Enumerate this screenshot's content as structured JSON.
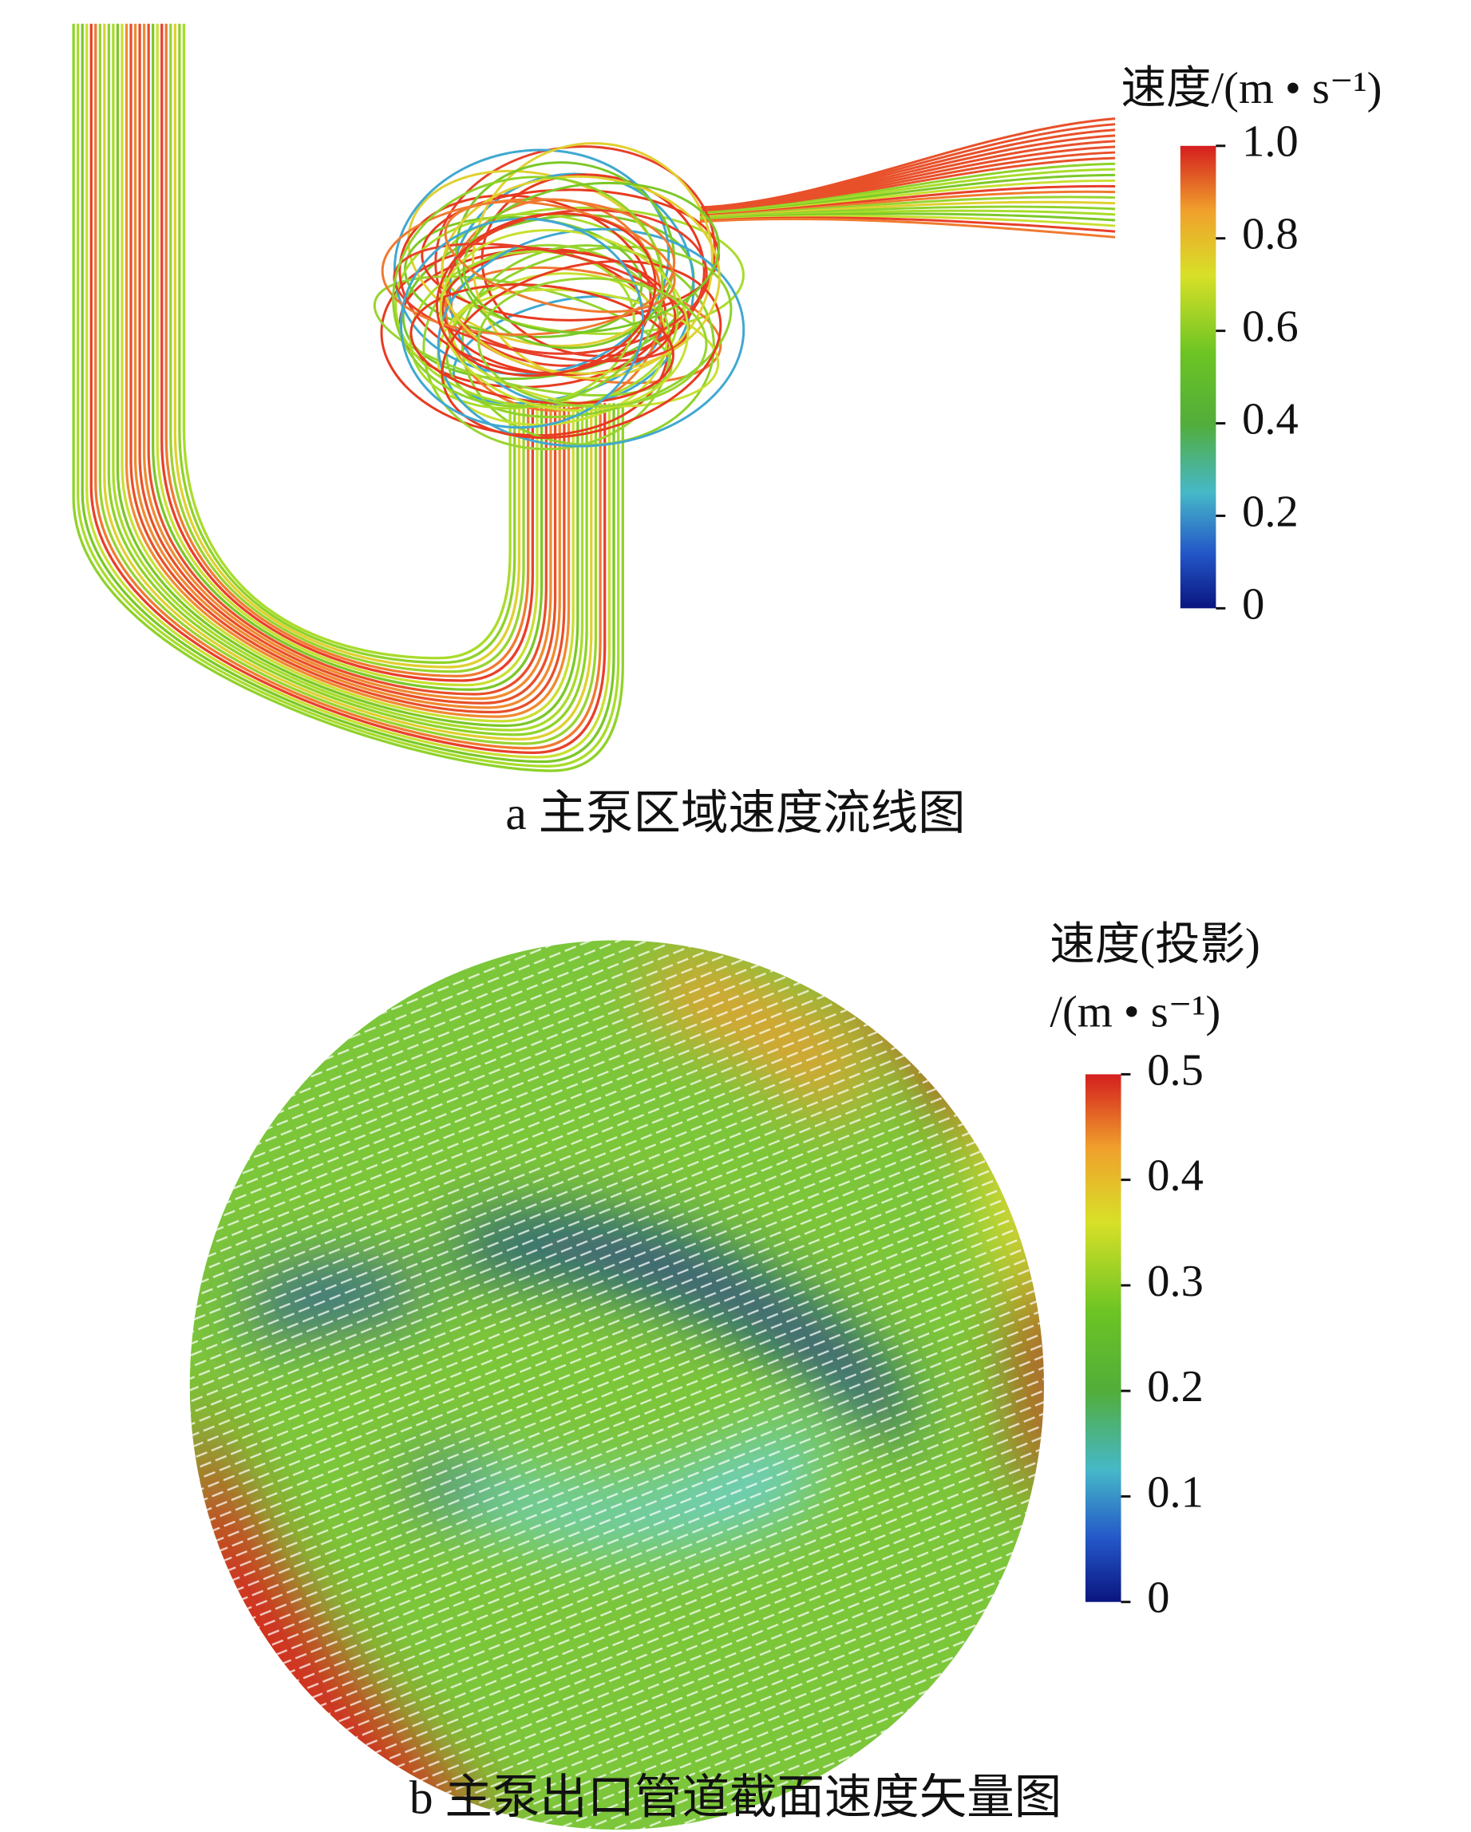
{
  "panels": [
    {
      "caption": "a  主泵区域速度流线图",
      "colorbar": {
        "title_lines": [
          "速度/(m • s⁻¹)"
        ],
        "clim": [
          0,
          1
        ],
        "ticks": [
          {
            "value": 1,
            "label": "1.0"
          },
          0.8,
          0.6,
          0.4,
          0.2,
          0
        ]
      }
    },
    {
      "caption": "b  主泵出口管道截面速度矢量图",
      "colorbar": {
        "title_lines": [
          "速度(投影)",
          "/(m • s⁻¹)"
        ],
        "clim": [
          0,
          0.5
        ],
        "ticks": [
          0.5,
          0.4,
          0.3,
          0.2,
          0.1,
          0
        ]
      }
    }
  ]
}
